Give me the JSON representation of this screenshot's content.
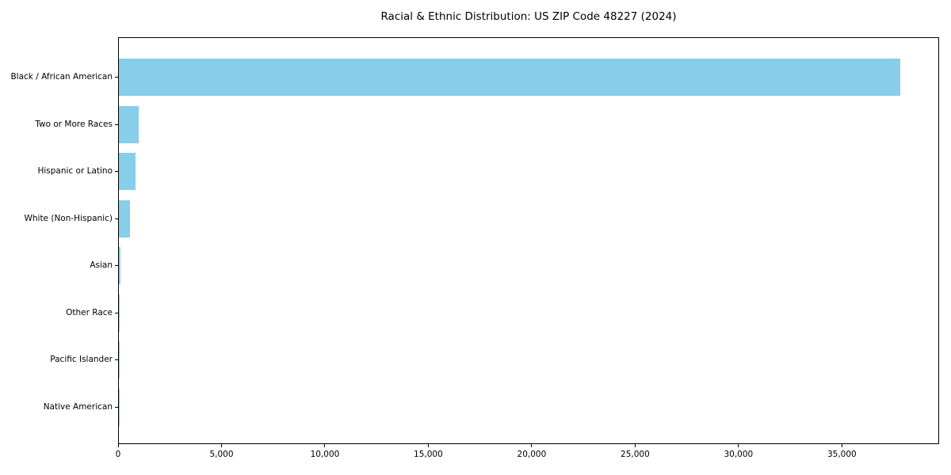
{
  "page": {
    "background_color": "#ffffff"
  },
  "chart_data": {
    "type": "bar",
    "orientation": "horizontal",
    "title": "Racial & Ethnic Distribution: US ZIP Code 48227 (2024)",
    "categories": [
      "Black / African American",
      "Two or More Races",
      "Hispanic or Latino",
      "White (Non-Hispanic)",
      "Asian",
      "Other Race",
      "Pacific Islander",
      "Native American"
    ],
    "values": [
      37870,
      970,
      820,
      550,
      60,
      30,
      5,
      20
    ],
    "xlabel": "",
    "ylabel": "",
    "xlim": [
      0,
      39700
    ],
    "xticks": [
      {
        "value": 0,
        "label": "0"
      },
      {
        "value": 5000,
        "label": "5,000"
      },
      {
        "value": 10000,
        "label": "10,000"
      },
      {
        "value": 15000,
        "label": "15,000"
      },
      {
        "value": 20000,
        "label": "20,000"
      },
      {
        "value": 25000,
        "label": "25,000"
      },
      {
        "value": 30000,
        "label": "30,000"
      },
      {
        "value": 35000,
        "label": "35,000"
      }
    ],
    "bar_color": "#87CEEB",
    "axis_color": "#000000",
    "grid": false,
    "legend_position": "none"
  }
}
